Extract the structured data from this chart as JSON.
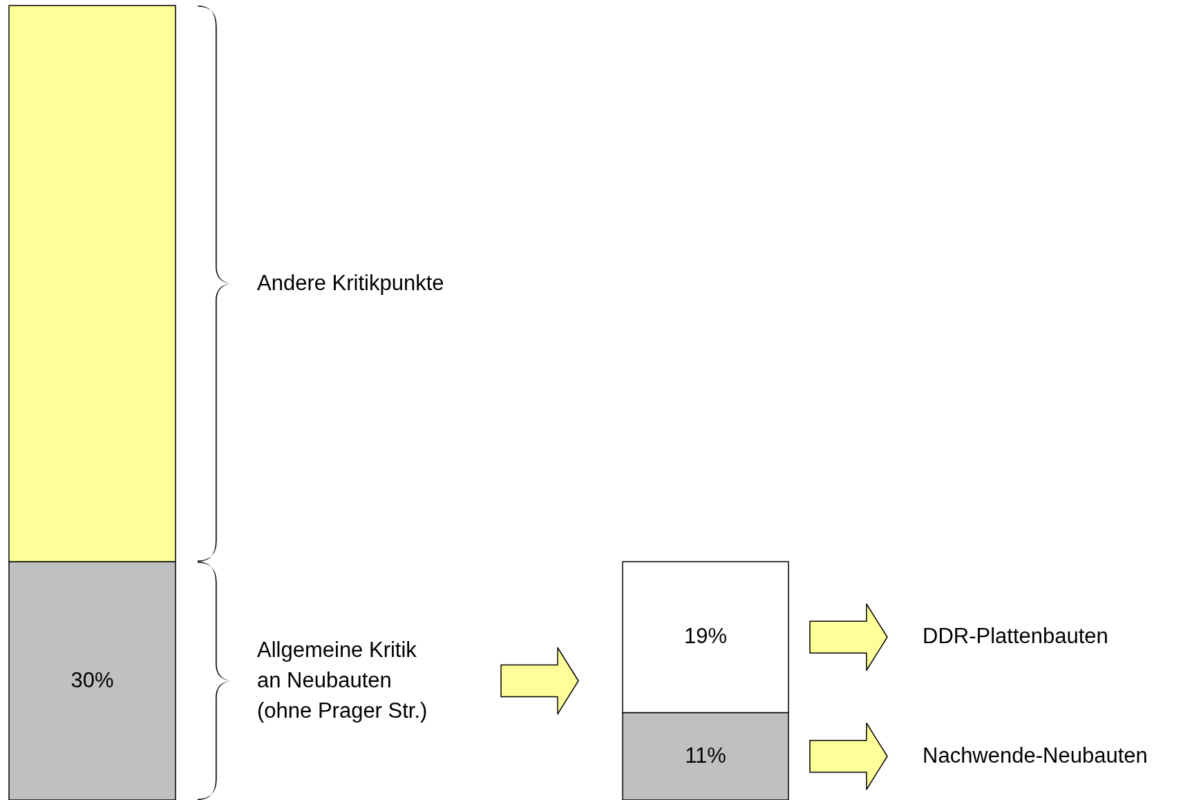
{
  "chart_data": {
    "type": "bar",
    "stacked": true,
    "categories": [
      null,
      null
    ],
    "series": [
      {
        "color": "#c0c0c0",
        "values": [
          30,
          11
        ],
        "value_labels": [
          "30%",
          "11%"
        ]
      },
      {
        "color": "#ffff99",
        "values": [
          70,
          null
        ],
        "value_labels": [
          null,
          null
        ]
      },
      {
        "color": "#ffffff",
        "values": [
          null,
          19
        ],
        "value_labels": [
          null,
          "19%"
        ]
      }
    ],
    "annotations": [
      "Andere Kritikpunkte",
      "Allgemeine Kritik\nan Neubauten\n(ohne Prager Str.)",
      "DDR-Plattenbauten",
      "Nachwende-Neubauten"
    ]
  }
}
